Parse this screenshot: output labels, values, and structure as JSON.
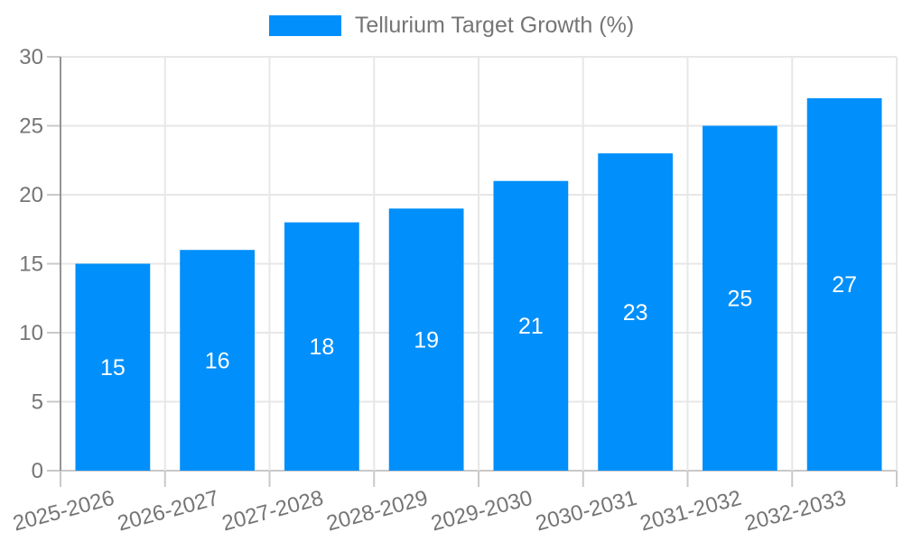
{
  "legend": {
    "series_label": "Tellurium Target Growth (%)",
    "position": "top"
  },
  "chart_data": {
    "type": "bar",
    "title": "Tellurium Target Growth (%)",
    "categories": [
      "2025-2026",
      "2026-2027",
      "2027-2028",
      "2028-2029",
      "2029-2030",
      "2030-2031",
      "2031-2032",
      "2032-2033"
    ],
    "values": [
      15,
      16,
      18,
      19,
      21,
      23,
      25,
      27
    ],
    "xlabel": "",
    "ylabel": "",
    "ylim": [
      0,
      30
    ],
    "yticks": [
      0,
      5,
      10,
      15,
      20,
      25,
      30
    ],
    "grid": true,
    "legend_position": "top",
    "colors": {
      "bar": "#008FFB",
      "grid_line": "#e7e7e7",
      "zero_line": "#c9c9c9",
      "axis_line": "#949494",
      "tick_mark": "#c9c9c9",
      "tick_text": "#757575",
      "data_label": "#ffffff"
    }
  }
}
